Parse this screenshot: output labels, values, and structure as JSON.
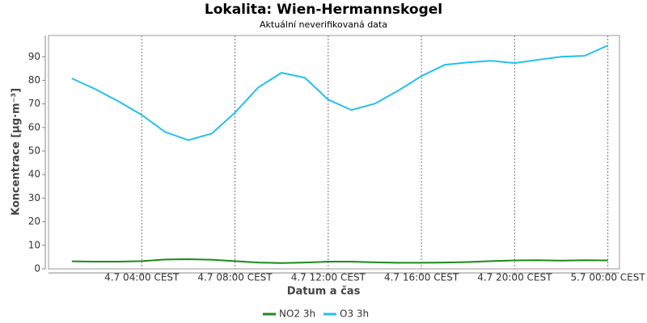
{
  "chart_data": {
    "type": "line",
    "title": "Lokalita: Wien-Hermannskogel",
    "subtitle": "Aktuální neverifikovaná data",
    "xlabel": "Datum a čas",
    "ylabel": "Koncentrace [µg·m⁻³]",
    "categories": [
      null,
      null,
      null,
      "4.7 04:00 CEST",
      null,
      null,
      null,
      "4.7 08:00 CEST",
      null,
      null,
      null,
      "4.7 12:00 CEST",
      null,
      null,
      null,
      "4.7 16:00 CEST",
      null,
      null,
      null,
      "4.7 20:00 CEST",
      null,
      null,
      null,
      "5.7 00:00 CEST"
    ],
    "series": [
      {
        "name": "NO2 3h",
        "color": "#1a8a1a",
        "values": [
          3.2,
          3.1,
          3.1,
          3.3,
          4.0,
          4.1,
          3.9,
          3.3,
          2.7,
          2.5,
          2.7,
          3.1,
          3.1,
          2.8,
          2.6,
          2.6,
          2.7,
          2.9,
          3.3,
          3.6,
          3.7,
          3.5,
          3.7,
          3.6
        ]
      },
      {
        "name": "O3 3h",
        "color": "#22c0f0",
        "values": [
          80.8,
          76.3,
          71.1,
          65.3,
          58.1,
          54.6,
          57.4,
          66.3,
          77.0,
          83.2,
          81.1,
          71.8,
          67.4,
          70.1,
          75.6,
          81.8,
          86.6,
          87.6,
          88.3,
          87.3,
          88.7,
          90.0,
          90.4,
          94.8
        ]
      }
    ],
    "ylim": [
      0,
      99
    ],
    "yticks": [
      0,
      10,
      20,
      30,
      40,
      50,
      60,
      70,
      80,
      90
    ],
    "grid": "x",
    "legend": "bottom"
  }
}
